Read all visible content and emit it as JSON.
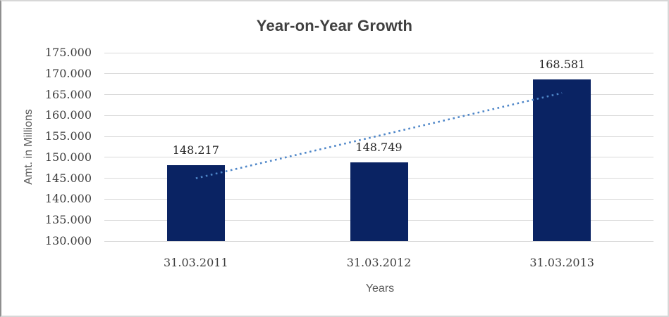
{
  "chart_data": {
    "type": "bar",
    "title": "Year-on-Year Growth",
    "categories": [
      "31.03.2011",
      "31.03.2012",
      "31.03.2013"
    ],
    "values": [
      148.217,
      148.749,
      168.581
    ],
    "data_labels": [
      "148.217",
      "148.749",
      "168.581"
    ],
    "xlabel": "Years",
    "ylabel": "Amt. in Millions",
    "ylim": [
      130,
      175
    ],
    "ytick_step": 5,
    "yticks": [
      {
        "value": 175,
        "label": "175.000"
      },
      {
        "value": 170,
        "label": "170.000"
      },
      {
        "value": 165,
        "label": "165.000"
      },
      {
        "value": 160,
        "label": "160.000"
      },
      {
        "value": 155,
        "label": "155.000"
      },
      {
        "value": 150,
        "label": "150.000"
      },
      {
        "value": 145,
        "label": "145.000"
      },
      {
        "value": 140,
        "label": "140.000"
      },
      {
        "value": 135,
        "label": "135.000"
      },
      {
        "value": 130,
        "label": "130.000"
      }
    ],
    "grid": true,
    "legend": "none",
    "trendline": {
      "type": "linear",
      "style": "dotted",
      "start_value": 145.0,
      "end_value": 165.364
    }
  },
  "colors": {
    "bar": "#0a2363",
    "trendline": "#4e86c8",
    "gridline": "#d9d9d9",
    "title_text": "#404040",
    "tick_text": "#3f3f3f",
    "data_label_text": "#262626",
    "axis_title_text": "#595959",
    "border": "#d7d7d7",
    "border_left": "#8f8f8f",
    "background": "#ffffff"
  }
}
